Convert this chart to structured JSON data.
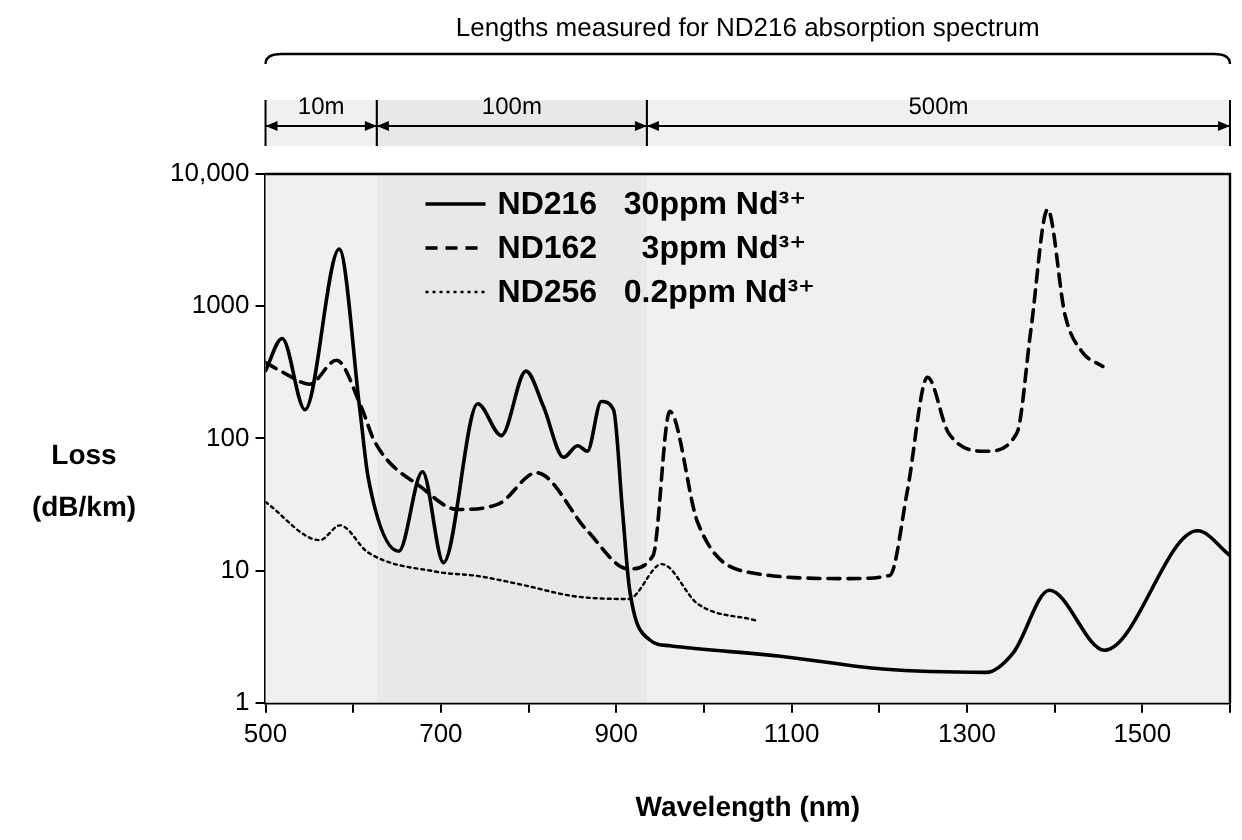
{
  "chart_data": {
    "type": "line",
    "title": "Lengths measured for ND216 absorption spectrum",
    "xlabel": "Wavelength (nm)",
    "ylabel": "Loss (dB/km)",
    "xlim": [
      500,
      1600
    ],
    "xticks": [
      500,
      {
        "value": 600,
        "label": null
      },
      700,
      {
        "value": 800,
        "label": null
      },
      900,
      {
        "value": 1000,
        "label": null
      },
      1100,
      {
        "value": 1200,
        "label": null
      },
      1300,
      {
        "value": 1400,
        "label": null
      },
      1500,
      {
        "value": 1600,
        "label": null
      }
    ],
    "ylim": [
      1,
      10000
    ],
    "yticks": [
      1,
      10,
      100,
      1000,
      {
        "value": 10000,
        "label": "10,000"
      }
    ],
    "log": "y",
    "grid": false,
    "legend": "top",
    "marker": "none",
    "bands": [
      {
        "axis": "x",
        "from": 500,
        "to": 627,
        "label": "10m",
        "color": "#f0f0f0"
      },
      {
        "axis": "x",
        "from": 627,
        "to": 935,
        "label": "100m",
        "color": "#e8e8e8"
      },
      {
        "axis": "x",
        "from": 935,
        "to": 1600,
        "label": "500m",
        "color": "#f0f0f0"
      }
    ],
    "series": [
      {
        "name": "ND216   30ppm Nd³⁺",
        "color": "#000000",
        "line_style": "solid",
        "x": [
          500,
          519,
          545,
          584,
          608,
          617,
          652,
          679,
          703,
          742,
          769,
          797,
          817,
          840,
          856,
          867,
          883,
          897,
          907,
          915,
          938,
          961,
          1087,
          1204,
          1322,
          1353,
          1394,
          1457,
          1563,
          1600
        ],
        "values": [
          325,
          570,
          165,
          2700,
          156,
          51,
          14,
          56,
          11.5,
          183,
          105,
          323,
          174,
          72,
          88,
          80,
          190,
          164,
          29,
          7.4,
          3.0,
          2.7,
          2.25,
          1.8,
          1.7,
          2.4,
          7.1,
          2.5,
          20,
          13
        ]
      },
      {
        "name": "ND162     3ppm Nd³⁺",
        "color": "#000000",
        "line_style": "dashed",
        "x": [
          500,
          523,
          550,
          581,
          609,
          625,
          679,
          719,
          766,
          809,
          867,
          914,
          942,
          961,
          993,
          1048,
          1165,
          1212,
          1232,
          1255,
          1279,
          1322,
          1357,
          1373,
          1392,
          1412,
          1431,
          1455
        ],
        "values": [
          375,
          308,
          257,
          390,
          174,
          93,
          42,
          29,
          32,
          55,
          20,
          10.3,
          13,
          160,
          23,
          9.8,
          8.7,
          9.2,
          40,
          290,
          110,
          80,
          110,
          670,
          5400,
          850,
          455,
          350
        ]
      },
      {
        "name": "ND256   0.2ppm Nd³⁺",
        "color": "#000000",
        "line_style": "dotted",
        "x": [
          500,
          562,
          585,
          617,
          695,
          742,
          793,
          852,
          914,
          952,
          993,
          1059
        ],
        "values": [
          33,
          17,
          22,
          13.7,
          9.8,
          9.1,
          7.8,
          6.4,
          6.1,
          11.2,
          5.6,
          4.2
        ]
      }
    ]
  }
}
